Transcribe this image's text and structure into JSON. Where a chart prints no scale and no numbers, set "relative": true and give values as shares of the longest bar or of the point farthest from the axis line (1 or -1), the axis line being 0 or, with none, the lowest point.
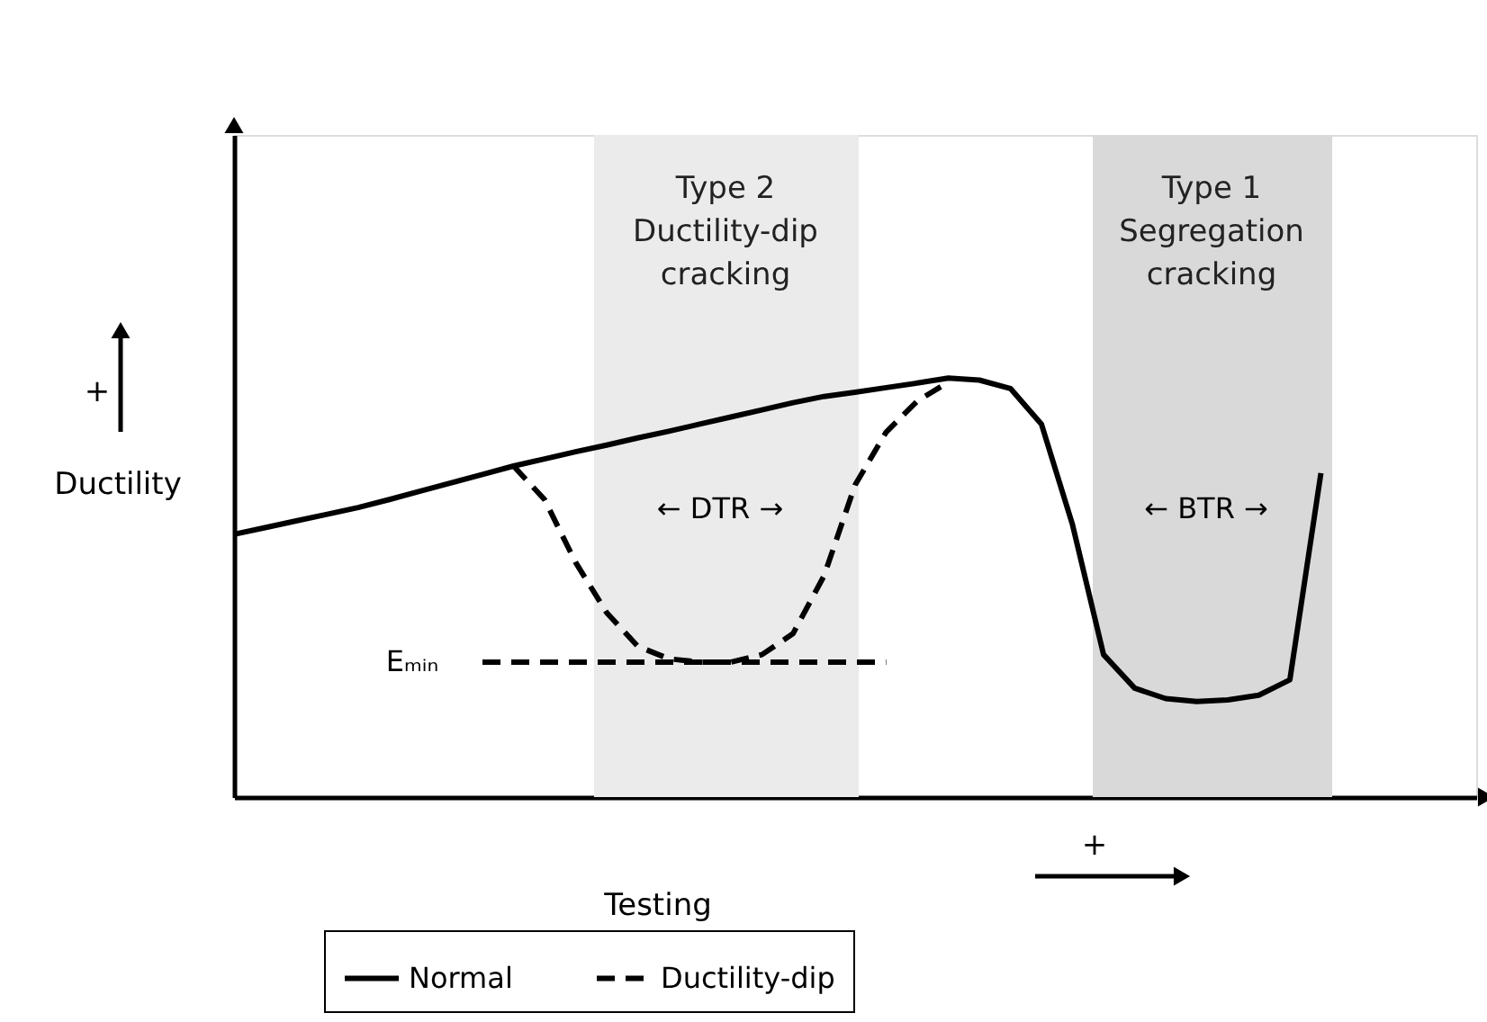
{
  "chart_data": {
    "type": "line",
    "relative": true,
    "xlabel": "Testing",
    "ylabel": "Ductility",
    "legend": "bottom",
    "categories": [
      null,
      null,
      null,
      null,
      null,
      null,
      null,
      null,
      null,
      null,
      null,
      null,
      null,
      null,
      null,
      null,
      null,
      null,
      null,
      null,
      null,
      null,
      null,
      null,
      null,
      null,
      null,
      null,
      null,
      null,
      null,
      null,
      null,
      null,
      null,
      null,
      null,
      null,
      null,
      null,
      null
    ],
    "series": [
      {
        "name": "Normal",
        "color": "#000000",
        "line_style": "solid",
        "values": [
          0.627,
          0.643,
          0.659,
          0.675,
          0.691,
          0.71,
          0.73,
          0.75,
          0.77,
          0.79,
          0.807,
          0.824,
          0.84,
          0.857,
          0.873,
          0.89,
          0.907,
          0.924,
          0.941,
          0.956,
          0.966,
          0.977,
          0.988,
          1.0,
          0.995,
          0.975,
          0.89,
          0.65,
          0.34,
          0.26,
          0.235,
          0.228,
          0.232,
          0.243,
          0.28,
          0.773,
          null,
          null,
          null,
          null,
          null
        ]
      },
      {
        "name": "Ductility-dip",
        "color": "#000000",
        "line_style": "dashed",
        "values": [
          null,
          null,
          null,
          null,
          null,
          null,
          null,
          null,
          null,
          0.79,
          0.71,
          0.56,
          0.44,
          0.36,
          0.33,
          0.322,
          0.322,
          0.34,
          0.39,
          0.528,
          0.745,
          0.871,
          0.945,
          0.99,
          null,
          null,
          null,
          null,
          null,
          null,
          null,
          null,
          null,
          null,
          null,
          null,
          null,
          null,
          null,
          null,
          null
        ]
      },
      {
        "color": "#000000",
        "line_style": "dashed",
        "values": [
          null,
          null,
          null,
          null,
          null,
          null,
          null,
          null,
          0.322,
          0.322,
          0.322,
          0.322,
          0.322,
          0.322,
          0.322,
          0.322,
          0.322,
          0.322,
          0.322,
          0.322,
          0.322,
          0.322,
          null,
          null,
          null,
          null,
          null,
          null,
          null,
          null,
          null,
          null,
          null,
          null,
          null,
          null,
          null,
          null,
          null,
          null,
          null
        ]
      }
    ],
    "annotations": [
      "+",
      "+",
      "← DTR →",
      "← BTR →",
      "Eₘᵢₙ",
      "Type 2\nDuctility-dip\ncracking",
      "Type 1\nSegregation\ncracking"
    ]
  }
}
